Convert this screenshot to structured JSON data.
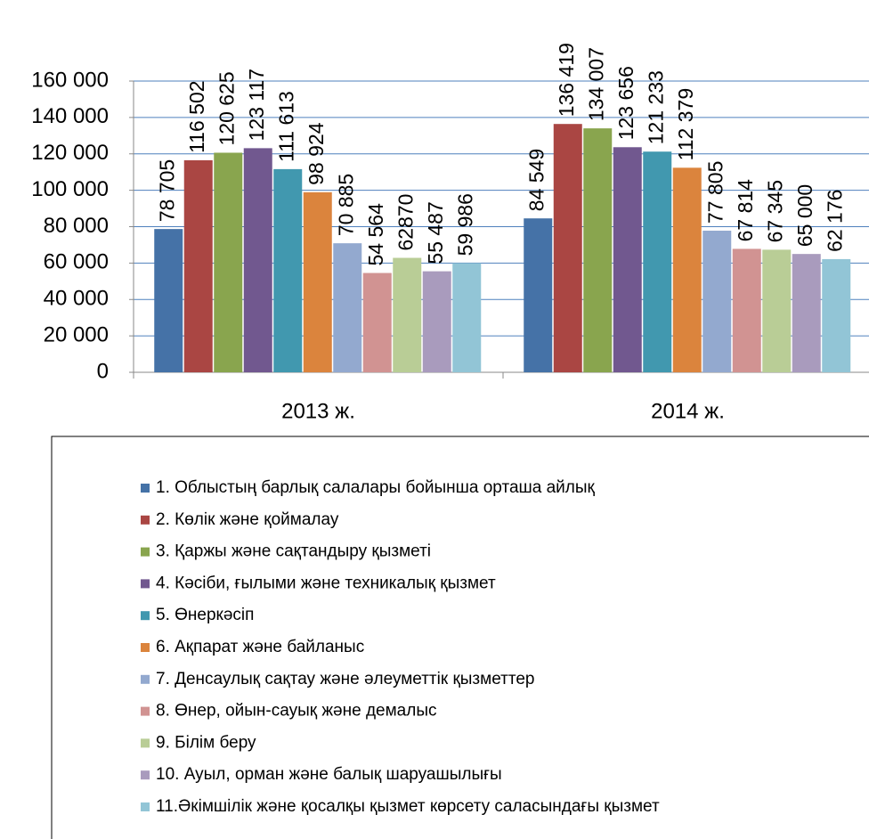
{
  "chart_data": {
    "type": "bar",
    "categories": [
      "2013 ж.",
      "2014 ж."
    ],
    "ylim": [
      0,
      160000
    ],
    "yticks": [
      0,
      {
        "value": 20000,
        "label": "20 000"
      },
      {
        "value": 40000,
        "label": "40 000"
      },
      {
        "value": 60000,
        "label": "60 000"
      },
      {
        "value": 80000,
        "label": "80 000"
      },
      {
        "value": 100000,
        "label": "100 000"
      },
      {
        "value": 120000,
        "label": "120 000"
      },
      {
        "value": 140000,
        "label": "140 000"
      },
      {
        "value": 160000,
        "label": "160 000"
      }
    ],
    "grid": true,
    "legend": "bottom",
    "series": [
      {
        "name": "1. Облыстың барлық салалары бойынша орташа айлық",
        "color": "#4572A7",
        "values": [
          78705,
          84549
        ],
        "value_labels": [
          "78 705",
          "84 549"
        ]
      },
      {
        "name": "2. Көлік және қоймалау",
        "color": "#AA4643",
        "values": [
          116502,
          136419
        ],
        "value_labels": [
          "116 502",
          "136 419"
        ]
      },
      {
        "name": "3. Қаржы және сақтандыру қызметі",
        "color": "#89A54E",
        "values": [
          120625,
          134007
        ],
        "value_labels": [
          "120 625",
          "134 007"
        ]
      },
      {
        "name": "4. Кәсіби, ғылыми және техникалық қызмет",
        "color": "#71588F",
        "values": [
          123117,
          123656
        ],
        "value_labels": [
          "123 117",
          "123 656"
        ]
      },
      {
        "name": "5. Өнеркәсіп",
        "color": "#4198AF",
        "values": [
          111613,
          121233
        ],
        "value_labels": [
          "111 613",
          "121 233"
        ]
      },
      {
        "name": "6. Ақпарат және байланыс",
        "color": "#DB843D",
        "values": [
          98924,
          112379
        ],
        "value_labels": [
          "98 924",
          "112 379"
        ]
      },
      {
        "name": "7. Денсаулық сақтау және әлеуметтік қызметтер",
        "color": "#93A9CF",
        "values": [
          70885,
          77805
        ],
        "value_labels": [
          "70 885",
          "77 805"
        ]
      },
      {
        "name": "8. Өнер, ойын-сауық және демалыс",
        "color": "#D19392",
        "values": [
          54564,
          67814
        ],
        "value_labels": [
          "54 564",
          "67 814"
        ]
      },
      {
        "name": "9. Білім беру",
        "color": "#B9CD96",
        "values": [
          62870,
          67345
        ],
        "value_labels": [
          "62870",
          "67 345"
        ]
      },
      {
        "name": "10. Ауыл, орман және балық шаруашылығы",
        "color": "#A99BBD",
        "values": [
          55487,
          65000
        ],
        "value_labels": [
          "55 487",
          "65 000"
        ]
      },
      {
        "name": "11.Әкімшілік және қосалқы қызмет көрсету саласындағы қызмет",
        "color": "#92C5D6",
        "values": [
          59986,
          62176
        ],
        "value_labels": [
          "59 986",
          "62 176"
        ]
      }
    ]
  }
}
